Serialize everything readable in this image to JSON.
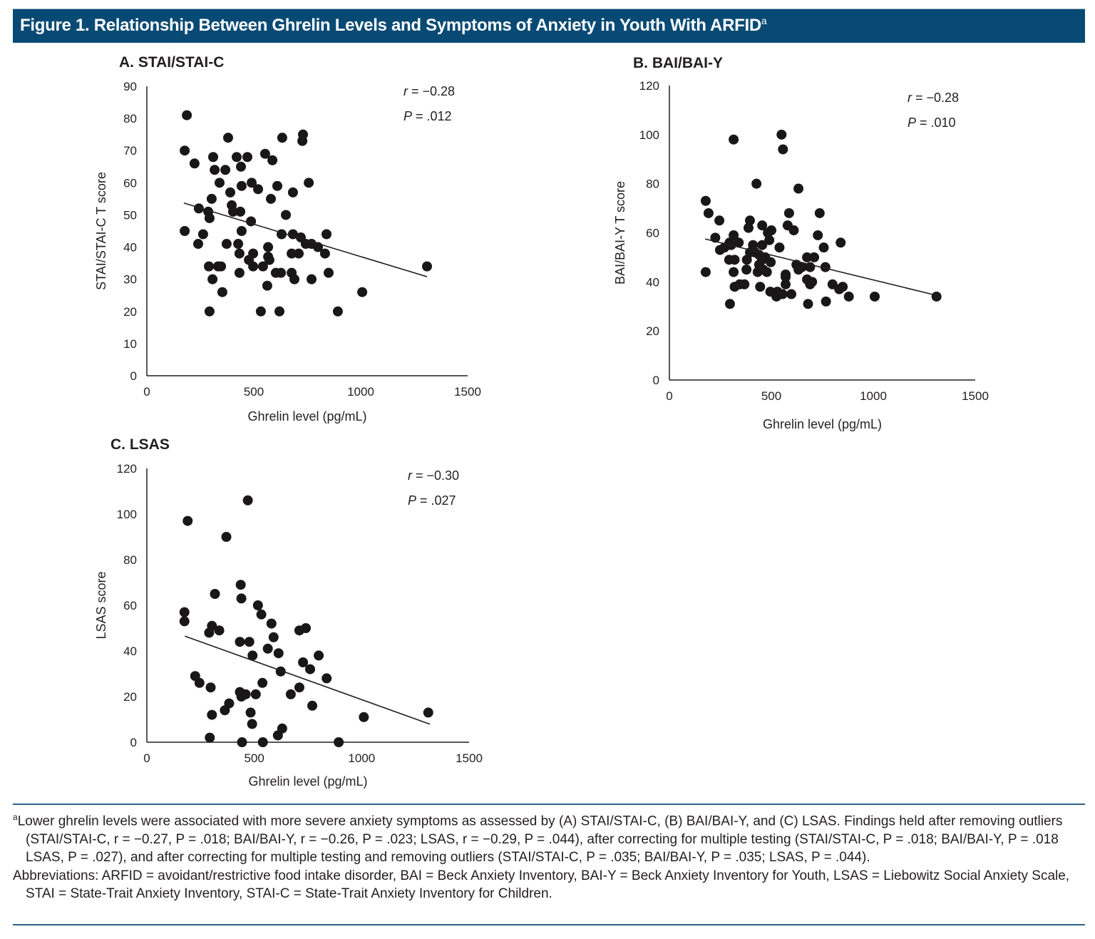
{
  "figure": {
    "title": "Figure 1. Relationship Between Ghrelin Levels and Symptoms of Anxiety in Youth With ARFID",
    "title_sup": "a",
    "banner_color": "#084a74"
  },
  "chart_data": [
    {
      "type": "scatter",
      "panel": "A",
      "title": "A. STAI/STAI-C",
      "xlabel": "Ghrelin level (pg/mL)",
      "ylabel": "STAI/STAI-C T score",
      "xlim": [
        0,
        1500
      ],
      "ylim": [
        0,
        90
      ],
      "xticks": [
        0,
        500,
        1000,
        1500
      ],
      "yticks": [
        0,
        10,
        20,
        30,
        40,
        50,
        60,
        70,
        80,
        90
      ],
      "grid": false,
      "stats": {
        "r": "r = −0.28",
        "p": "P = .012"
      },
      "trendline": [
        [
          173,
          53.7
        ],
        [
          1310,
          30.8
        ]
      ],
      "points": [
        [
          187,
          81
        ],
        [
          177,
          70
        ],
        [
          223,
          66
        ],
        [
          380,
          74
        ],
        [
          310,
          68
        ],
        [
          317,
          64
        ],
        [
          367,
          64
        ],
        [
          420,
          68
        ],
        [
          470,
          68
        ],
        [
          440,
          65
        ],
        [
          340,
          60
        ],
        [
          390,
          57
        ],
        [
          443,
          59
        ],
        [
          490,
          60
        ],
        [
          520,
          58
        ],
        [
          553,
          69
        ],
        [
          587,
          67
        ],
        [
          633,
          74
        ],
        [
          730,
          75
        ],
        [
          727,
          73
        ],
        [
          757,
          60
        ],
        [
          683,
          57
        ],
        [
          610,
          59
        ],
        [
          580,
          55
        ],
        [
          303,
          55
        ],
        [
          243,
          52
        ],
        [
          397,
          53
        ],
        [
          403,
          51
        ],
        [
          437,
          51
        ],
        [
          287,
          51
        ],
        [
          293,
          49
        ],
        [
          487,
          48
        ],
        [
          650,
          50
        ],
        [
          177,
          45
        ],
        [
          443,
          45
        ],
        [
          263,
          44
        ],
        [
          240,
          41
        ],
        [
          373,
          41
        ],
        [
          427,
          41
        ],
        [
          630,
          44
        ],
        [
          683,
          44
        ],
        [
          720,
          43
        ],
        [
          743,
          41
        ],
        [
          770,
          41
        ],
        [
          800,
          40
        ],
        [
          833,
          38
        ],
        [
          840,
          44
        ],
        [
          433,
          38
        ],
        [
          497,
          38
        ],
        [
          477,
          36
        ],
        [
          567,
          40
        ],
        [
          567,
          37
        ],
        [
          573,
          36
        ],
        [
          543,
          34
        ],
        [
          497,
          34
        ],
        [
          290,
          34
        ],
        [
          333,
          34
        ],
        [
          347,
          34
        ],
        [
          677,
          38
        ],
        [
          710,
          38
        ],
        [
          603,
          32
        ],
        [
          627,
          32
        ],
        [
          677,
          32
        ],
        [
          690,
          30
        ],
        [
          770,
          30
        ],
        [
          850,
          32
        ],
        [
          307,
          30
        ],
        [
          433,
          32
        ],
        [
          353,
          26
        ],
        [
          563,
          28
        ],
        [
          293,
          20
        ],
        [
          533,
          20
        ],
        [
          620,
          20
        ],
        [
          893,
          20
        ],
        [
          1007,
          26
        ],
        [
          1310,
          34
        ]
      ]
    },
    {
      "type": "scatter",
      "panel": "B",
      "title": "B. BAI/BAI-Y",
      "xlabel": "Ghrelin level (pg/mL)",
      "ylabel": "BAI/BAI-Y T score",
      "xlim": [
        0,
        1500
      ],
      "ylim": [
        0,
        120
      ],
      "xticks": [
        0,
        500,
        1000,
        1500
      ],
      "yticks": [
        0,
        20,
        40,
        60,
        80,
        100,
        120
      ],
      "grid": false,
      "stats": {
        "r": "r = −0.28",
        "p": "P = .010"
      },
      "trendline": [
        [
          175,
          57.5
        ],
        [
          1310,
          34.5
        ]
      ],
      "points": [
        [
          315,
          98
        ],
        [
          550,
          100
        ],
        [
          557,
          94
        ],
        [
          427,
          80
        ],
        [
          633,
          78
        ],
        [
          178,
          73
        ],
        [
          192,
          68
        ],
        [
          245,
          65
        ],
        [
          587,
          68
        ],
        [
          737,
          68
        ],
        [
          395,
          65
        ],
        [
          455,
          63
        ],
        [
          388,
          62
        ],
        [
          580,
          63
        ],
        [
          610,
          61
        ],
        [
          500,
          61
        ],
        [
          483,
          60
        ],
        [
          225,
          58
        ],
        [
          315,
          59
        ],
        [
          295,
          56
        ],
        [
          340,
          56
        ],
        [
          728,
          59
        ],
        [
          490,
          57
        ],
        [
          270,
          54
        ],
        [
          410,
          55
        ],
        [
          455,
          55
        ],
        [
          303,
          55
        ],
        [
          540,
          54
        ],
        [
          420,
          52
        ],
        [
          395,
          52
        ],
        [
          440,
          51
        ],
        [
          757,
          54
        ],
        [
          248,
          53
        ],
        [
          840,
          56
        ],
        [
          470,
          50
        ],
        [
          293,
          49
        ],
        [
          320,
          49
        ],
        [
          455,
          49
        ],
        [
          497,
          48
        ],
        [
          380,
          49
        ],
        [
          570,
          43
        ],
        [
          675,
          50
        ],
        [
          710,
          50
        ],
        [
          623,
          47
        ],
        [
          650,
          46
        ],
        [
          690,
          46
        ],
        [
          765,
          46
        ],
        [
          440,
          47
        ],
        [
          178,
          44
        ],
        [
          315,
          44
        ],
        [
          378,
          45
        ],
        [
          433,
          44
        ],
        [
          460,
          45
        ],
        [
          478,
          44
        ],
        [
          633,
          45
        ],
        [
          570,
          42
        ],
        [
          675,
          41
        ],
        [
          700,
          40
        ],
        [
          690,
          39
        ],
        [
          570,
          39
        ],
        [
          320,
          38
        ],
        [
          345,
          39
        ],
        [
          368,
          39
        ],
        [
          445,
          38
        ],
        [
          495,
          36
        ],
        [
          525,
          34
        ],
        [
          555,
          35
        ],
        [
          598,
          35
        ],
        [
          530,
          36
        ],
        [
          800,
          39
        ],
        [
          850,
          38
        ],
        [
          880,
          34
        ],
        [
          833,
          37
        ],
        [
          1007,
          34
        ],
        [
          297,
          31
        ],
        [
          680,
          31
        ],
        [
          768,
          32
        ],
        [
          1310,
          34
        ]
      ]
    },
    {
      "type": "scatter",
      "panel": "C",
      "title": "C. LSAS",
      "xlabel": "Ghrelin level (pg/mL)",
      "ylabel": "LSAS score",
      "xlim": [
        0,
        1500
      ],
      "ylim": [
        0,
        120
      ],
      "xticks": [
        0,
        500,
        1000,
        1500
      ],
      "yticks": [
        0,
        20,
        40,
        60,
        80,
        100,
        120
      ],
      "grid": false,
      "stats": {
        "r": "r = −0.30",
        "p": "P = .027"
      },
      "trendline": [
        [
          177,
          46.5
        ],
        [
          1318,
          7.9
        ]
      ],
      "points": [
        [
          190,
          97
        ],
        [
          470,
          106
        ],
        [
          370,
          90
        ],
        [
          437,
          69
        ],
        [
          317,
          65
        ],
        [
          440,
          63
        ],
        [
          175,
          57
        ],
        [
          175,
          53
        ],
        [
          517,
          60
        ],
        [
          533,
          56
        ],
        [
          580,
          52
        ],
        [
          290,
          48
        ],
        [
          303,
          51
        ],
        [
          337,
          49
        ],
        [
          590,
          46
        ],
        [
          433,
          44
        ],
        [
          477,
          44
        ],
        [
          563,
          41
        ],
        [
          613,
          39
        ],
        [
          710,
          49
        ],
        [
          740,
          50
        ],
        [
          492,
          38
        ],
        [
          800,
          38
        ],
        [
          727,
          35
        ],
        [
          760,
          32
        ],
        [
          623,
          31
        ],
        [
          837,
          28
        ],
        [
          225,
          29
        ],
        [
          245,
          26
        ],
        [
          538,
          26
        ],
        [
          297,
          24
        ],
        [
          710,
          24
        ],
        [
          670,
          21
        ],
        [
          433,
          22
        ],
        [
          440,
          20
        ],
        [
          460,
          21
        ],
        [
          507,
          21
        ],
        [
          383,
          17
        ],
        [
          363,
          14
        ],
        [
          770,
          16
        ],
        [
          303,
          12
        ],
        [
          483,
          13
        ],
        [
          1010,
          11
        ],
        [
          1310,
          13
        ],
        [
          490,
          8
        ],
        [
          630,
          6
        ],
        [
          610,
          3
        ],
        [
          293,
          2
        ],
        [
          443,
          0
        ],
        [
          540,
          0
        ],
        [
          893,
          0
        ]
      ]
    }
  ],
  "footnote": {
    "sup": "a",
    "line1": "Lower ghrelin levels were associated with more severe anxiety symptoms as assessed by (A) STAI/STAI-C, (B) BAI/BAI-Y, and (C) LSAS. Findings held after removing outliers (STAI/STAI-C, r = −0.27, P = .018; BAI/BAI-Y, r = −0.26, P = .023; LSAS, r = −0.29, P = .044), after correcting for multiple testing (STAI/STAI-C, P = .018; BAI/BAI-Y, P = .018 LSAS, P = .027), and after correcting for multiple testing and removing outliers (STAI/STAI-C, P = .035; BAI/BAI-Y, P = .035; LSAS, P = .044).",
    "abbreviations": "Abbreviations: ARFID = avoidant/restrictive food intake disorder, BAI = Beck Anxiety Inventory, BAI-Y = Beck Anxiety Inventory for Youth, LSAS = Liebowitz Social Anxiety Scale, STAI = State-Trait Anxiety Inventory, STAI-C = State-Trait Anxiety Inventory for Children."
  }
}
